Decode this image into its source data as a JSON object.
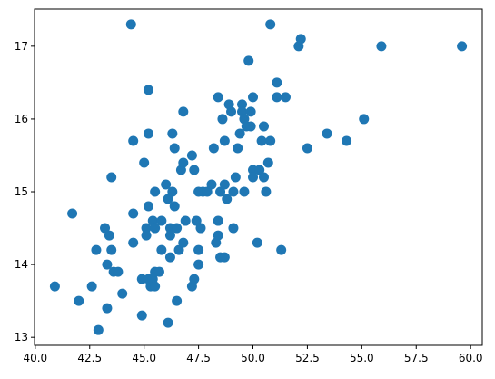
{
  "chart_data": {
    "type": "scatter",
    "color": "#1f77b4",
    "x": [
      40.9,
      41.7,
      42.0,
      42.6,
      42.8,
      42.9,
      43.2,
      43.3,
      43.3,
      43.4,
      43.5,
      43.5,
      43.6,
      43.8,
      44.0,
      44.4,
      44.5,
      44.5,
      44.5,
      44.9,
      44.9,
      45.0,
      45.1,
      45.1,
      45.2,
      45.2,
      45.2,
      45.2,
      45.3,
      45.4,
      45.4,
      45.5,
      45.5,
      45.5,
      45.5,
      45.7,
      45.8,
      45.8,
      46.0,
      46.1,
      46.1,
      46.2,
      46.2,
      46.2,
      46.3,
      46.3,
      46.4,
      46.4,
      46.5,
      46.5,
      46.6,
      46.7,
      46.8,
      46.8,
      46.8,
      46.9,
      47.2,
      47.2,
      47.3,
      47.3,
      47.4,
      47.5,
      47.5,
      47.5,
      47.6,
      47.7,
      47.9,
      48.1,
      48.2,
      48.3,
      48.4,
      48.4,
      48.4,
      48.5,
      48.5,
      48.6,
      48.7,
      48.7,
      48.7,
      48.8,
      48.9,
      49.0,
      49.1,
      49.1,
      49.2,
      49.3,
      49.4,
      49.5,
      49.5,
      49.6,
      49.6,
      49.7,
      49.8,
      49.9,
      49.9,
      50.0,
      50.0,
      50.0,
      50.2,
      50.3,
      50.4,
      50.5,
      50.5,
      50.6,
      50.7,
      50.8,
      50.8,
      51.1,
      51.1,
      51.3,
      51.5,
      52.1,
      52.2,
      52.5,
      53.4,
      54.3,
      55.1,
      55.9,
      59.6
    ],
    "values": [
      13.7,
      14.7,
      13.5,
      13.7,
      14.2,
      13.1,
      14.5,
      14.0,
      13.4,
      14.4,
      14.2,
      15.2,
      13.9,
      13.9,
      13.6,
      17.3,
      15.7,
      14.7,
      14.3,
      13.3,
      13.8,
      15.4,
      14.5,
      14.4,
      16.4,
      15.8,
      14.8,
      13.8,
      13.7,
      13.8,
      14.6,
      15.0,
      14.5,
      13.9,
      13.7,
      13.9,
      14.6,
      14.2,
      15.1,
      13.2,
      14.9,
      14.5,
      14.4,
      14.1,
      15.8,
      15.0,
      15.6,
      14.8,
      14.5,
      13.5,
      14.2,
      15.3,
      15.4,
      16.1,
      14.3,
      14.6,
      15.5,
      13.7,
      13.8,
      15.3,
      14.6,
      15.0,
      14.2,
      14.0,
      14.5,
      15.0,
      15.0,
      15.1,
      15.6,
      14.3,
      16.3,
      14.4,
      14.6,
      15.0,
      14.1,
      16.0,
      15.7,
      15.1,
      14.1,
      14.9,
      16.2,
      16.1,
      15.0,
      14.5,
      15.2,
      15.6,
      15.8,
      16.2,
      16.1,
      16.0,
      15.0,
      15.9,
      16.8,
      15.9,
      16.1,
      16.3,
      15.3,
      15.2,
      14.3,
      15.3,
      15.7,
      15.9,
      15.2,
      15.0,
      15.4,
      15.7,
      17.3,
      16.5,
      16.3,
      14.2,
      16.3,
      17.0,
      17.1,
      15.6,
      15.8,
      15.7,
      16.0,
      17.0,
      17.0
    ],
    "xlim": [
      39.965,
      60.535
    ],
    "ylim": [
      12.89,
      17.51
    ],
    "xticks": [
      {
        "value": 40,
        "label": "40.0"
      },
      42.5,
      {
        "value": 45,
        "label": "45.0"
      },
      47.5,
      {
        "value": 50,
        "label": "50.0"
      },
      52.5,
      {
        "value": 55,
        "label": "55.0"
      },
      57.5,
      {
        "value": 60,
        "label": "60.0"
      }
    ],
    "yticks": [
      13,
      14,
      15,
      16,
      17
    ]
  }
}
